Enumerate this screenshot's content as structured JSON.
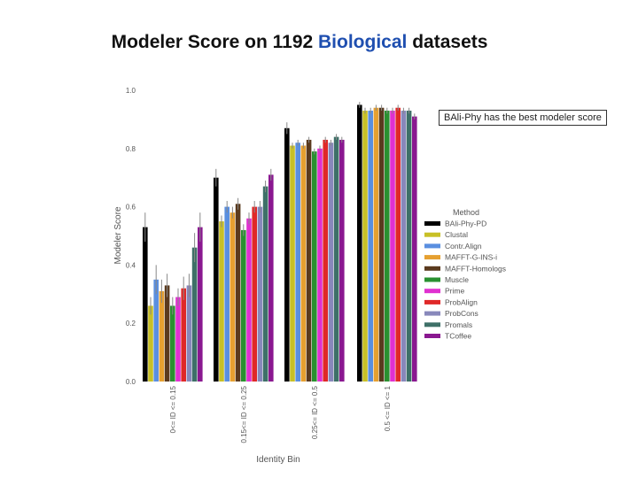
{
  "title": {
    "prefix": "Modeler Score on 1192 ",
    "highlight": "Biological",
    "suffix": " datasets",
    "highlight_color": "#1f4fb0"
  },
  "callout": "BAli-Phy has the best modeler score",
  "chart_data": {
    "type": "bar",
    "xlabel": "Identity Bin",
    "ylabel": "Modeler Score",
    "ylim": [
      0,
      1.0
    ],
    "yticks": [
      "0.0",
      "0.2",
      "0.4",
      "0.6",
      "0.8",
      "1.0"
    ],
    "categories": [
      "0<= ID <= 0.15",
      "0.15<= ID <= 0.25",
      "0.25<= ID <= 0.5",
      "0.5 <= ID <= 1"
    ],
    "legend": {
      "title": "Method",
      "position": "right"
    },
    "series": [
      {
        "name": "BAli-Phy-PD",
        "color": "#000000",
        "values": [
          0.53,
          0.7,
          0.87,
          0.95
        ],
        "err": [
          0.05,
          0.03,
          0.02,
          0.01
        ]
      },
      {
        "name": "Clustal",
        "color": "#c8c026",
        "values": [
          0.26,
          0.55,
          0.81,
          0.93
        ],
        "err": [
          0.03,
          0.02,
          0.01,
          0.01
        ]
      },
      {
        "name": "Contr.Align",
        "color": "#5a8fe0",
        "values": [
          0.35,
          0.6,
          0.82,
          0.93
        ],
        "err": [
          0.05,
          0.02,
          0.01,
          0.01
        ]
      },
      {
        "name": "MAFFT-G-INS-i",
        "color": "#e6a030",
        "values": [
          0.31,
          0.58,
          0.81,
          0.94
        ],
        "err": [
          0.04,
          0.02,
          0.01,
          0.01
        ]
      },
      {
        "name": "MAFFT-Homologs",
        "color": "#5a3a1e",
        "values": [
          0.33,
          0.61,
          0.83,
          0.94
        ],
        "err": [
          0.04,
          0.02,
          0.01,
          0.01
        ]
      },
      {
        "name": "Muscle",
        "color": "#2a9030",
        "values": [
          0.26,
          0.52,
          0.79,
          0.93
        ],
        "err": [
          0.03,
          0.02,
          0.01,
          0.01
        ]
      },
      {
        "name": "Prime",
        "color": "#e030d0",
        "values": [
          0.29,
          0.56,
          0.8,
          0.93
        ],
        "err": [
          0.03,
          0.02,
          0.01,
          0.01
        ]
      },
      {
        "name": "ProbAlign",
        "color": "#e02828",
        "values": [
          0.32,
          0.6,
          0.83,
          0.94
        ],
        "err": [
          0.04,
          0.02,
          0.01,
          0.01
        ]
      },
      {
        "name": "ProbCons",
        "color": "#8888bb",
        "values": [
          0.33,
          0.6,
          0.82,
          0.93
        ],
        "err": [
          0.04,
          0.02,
          0.01,
          0.01
        ]
      },
      {
        "name": "Promals",
        "color": "#3e7068",
        "values": [
          0.46,
          0.67,
          0.84,
          0.93
        ],
        "err": [
          0.05,
          0.02,
          0.01,
          0.01
        ]
      },
      {
        "name": "TCoffee",
        "color": "#8a1890",
        "values": [
          0.53,
          0.71,
          0.83,
          0.91
        ],
        "err": [
          0.05,
          0.02,
          0.01,
          0.01
        ]
      }
    ]
  }
}
